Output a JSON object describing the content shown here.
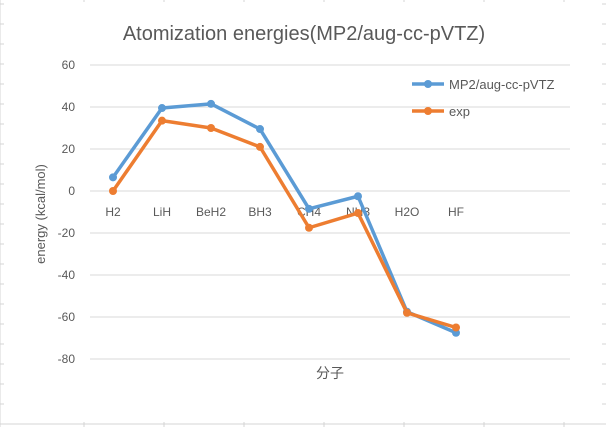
{
  "chart_data": {
    "type": "line",
    "title": "Atomization energies(MP2/aug-cc-pVTZ)",
    "xlabel": "分子",
    "ylabel": "energy (kcal/mol)",
    "categories": [
      "H2",
      "LiH",
      "BeH2",
      "BH3",
      "CH4",
      "NH3",
      "H2O",
      "HF"
    ],
    "ylim": [
      -80,
      60
    ],
    "yticks": [
      60,
      40,
      20,
      0,
      -20,
      -40,
      -60,
      -80
    ],
    "grid": true,
    "legend_position": "top-right",
    "series": [
      {
        "name": "MP2/aug-cc-pVTZ",
        "color": "#5B9BD5",
        "values": [
          6.5,
          39.5,
          41.5,
          29.5,
          -8.5,
          -2.5,
          -57.5,
          -67.5
        ]
      },
      {
        "name": "exp",
        "color": "#ED7D31",
        "values": [
          0,
          33.5,
          30,
          21,
          -17.5,
          -10.5,
          -58,
          -65
        ]
      }
    ]
  }
}
